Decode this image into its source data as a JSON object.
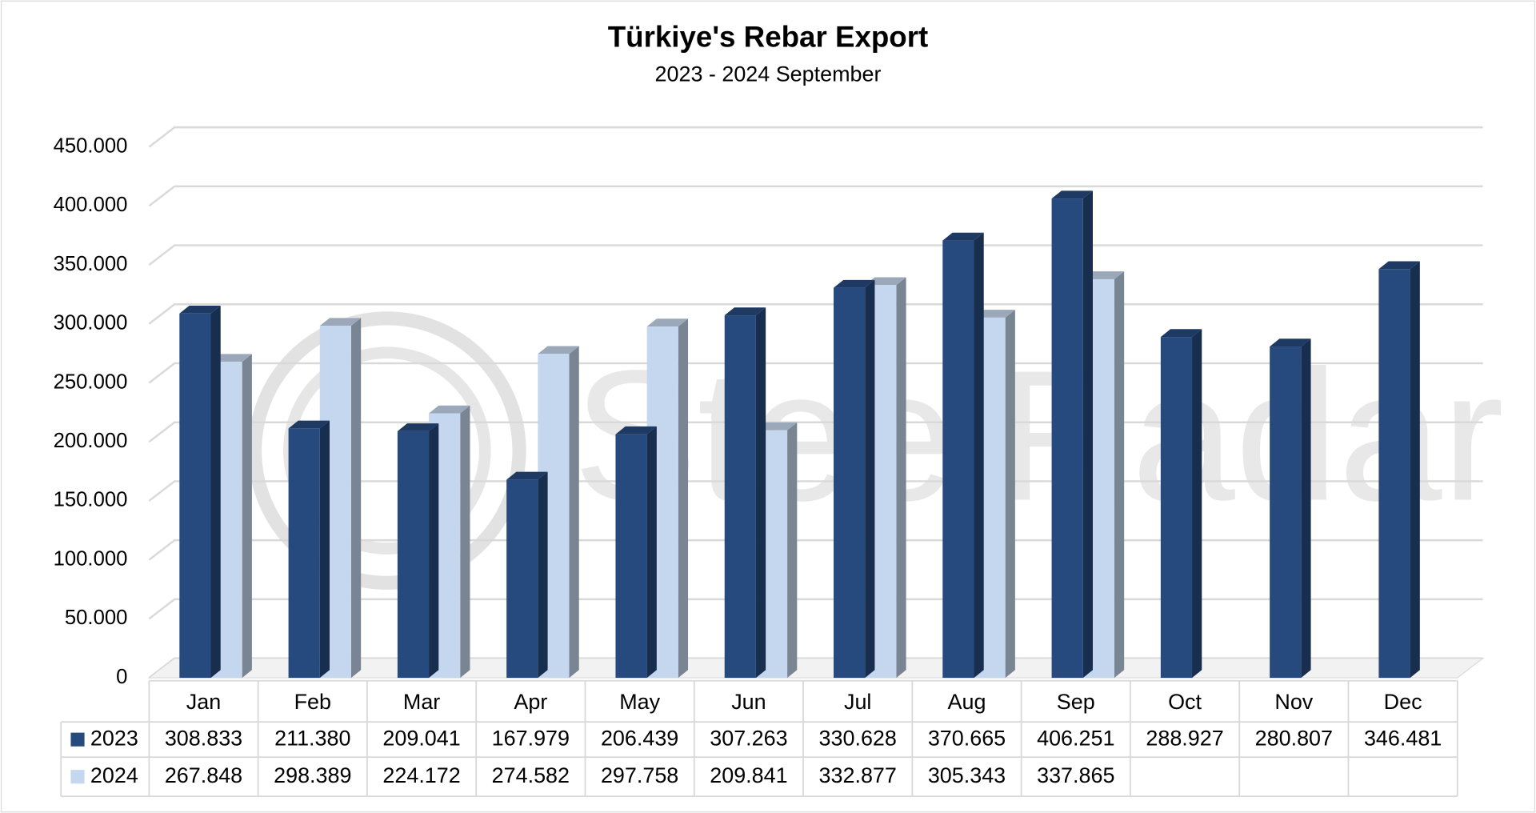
{
  "chart_data": {
    "type": "bar3d",
    "title": "Türkiye's Rebar Export",
    "subtitle": "2023 - 2024 September",
    "watermark": "SteelRadar",
    "categories": [
      "Jan",
      "Feb",
      "Mar",
      "Apr",
      "May",
      "Jun",
      "Jul",
      "Aug",
      "Sep",
      "Oct",
      "Nov",
      "Dec"
    ],
    "series": [
      {
        "name": "2023",
        "color": "#264a7e",
        "values": [
          308833,
          211380,
          209041,
          167979,
          206439,
          307263,
          330628,
          370665,
          406251,
          288927,
          280807,
          346481
        ],
        "value_labels": [
          "308.833",
          "211.380",
          "209.041",
          "167.979",
          "206.439",
          "307.263",
          "330.628",
          "370.665",
          "406.251",
          "288.927",
          "280.807",
          "346.481"
        ]
      },
      {
        "name": "2024",
        "color": "#c5d7ef",
        "values": [
          267848,
          298389,
          224172,
          274582,
          297758,
          209841,
          332877,
          305343,
          337865,
          null,
          null,
          null
        ],
        "value_labels": [
          "267.848",
          "298.389",
          "224.172",
          "274.582",
          "297.758",
          "209.841",
          "332.877",
          "305.343",
          "337.865",
          null,
          null,
          null
        ]
      }
    ],
    "ylim": [
      0,
      450000
    ],
    "yticks": [
      0,
      {
        "value": 50000,
        "label": "50.000"
      },
      {
        "value": 100000,
        "label": "100.000"
      },
      {
        "value": 150000,
        "label": "150.000"
      },
      {
        "value": 200000,
        "label": "200.000"
      },
      {
        "value": 250000,
        "label": "250.000"
      },
      {
        "value": 300000,
        "label": "300.000"
      },
      {
        "value": 350000,
        "label": "350.000"
      },
      {
        "value": 400000,
        "label": "400.000"
      },
      {
        "value": 450000,
        "label": "450.000"
      }
    ],
    "grid": true,
    "data_table": true
  }
}
